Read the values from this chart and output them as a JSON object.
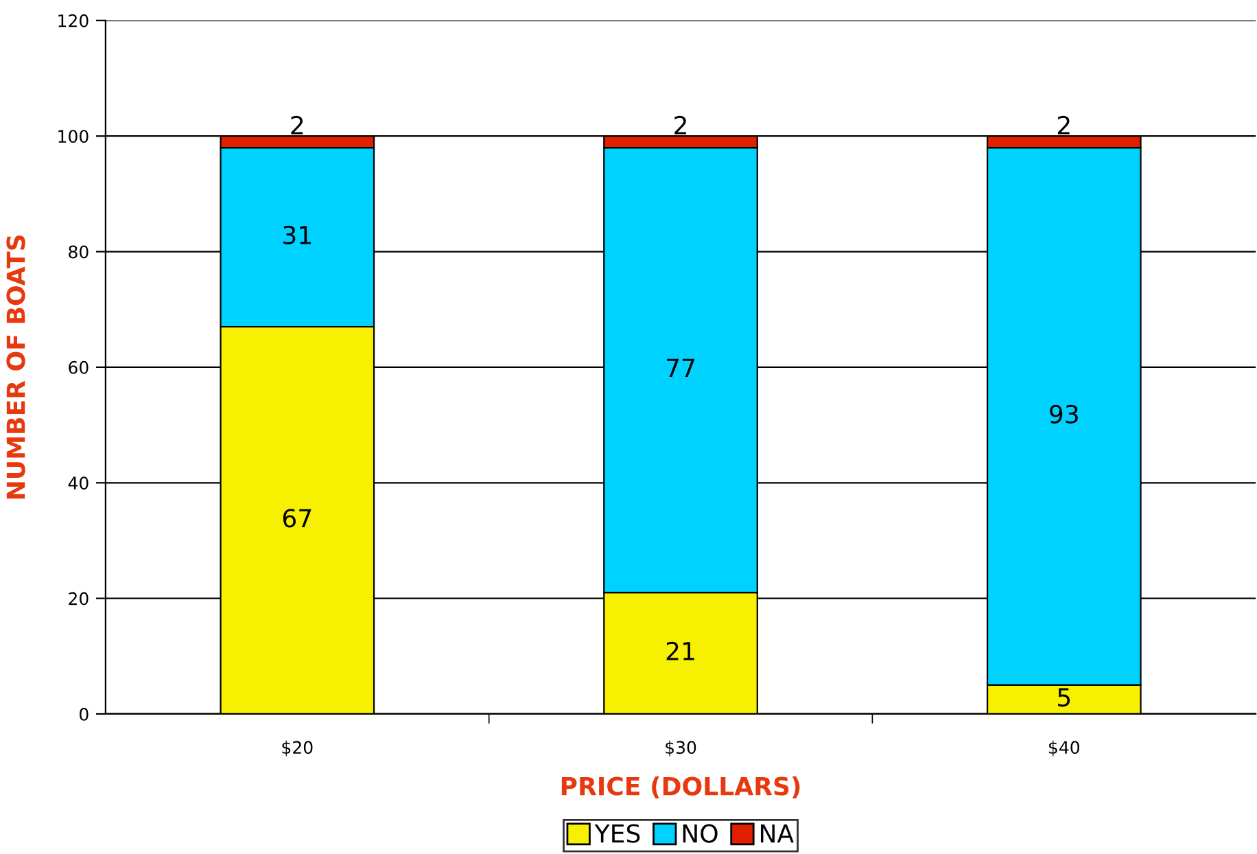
{
  "chart_data": {
    "type": "bar",
    "stacked": true,
    "xlabel": "PRICE (DOLLARS)",
    "ylabel": "NUMBER OF BOATS",
    "categories": [
      "$20",
      "$30",
      "$40"
    ],
    "series": [
      {
        "name": "YES",
        "color": "#f7f000",
        "values": [
          67,
          21,
          5
        ]
      },
      {
        "name": "NO",
        "color": "#00d2ff",
        "values": [
          31,
          77,
          93
        ]
      },
      {
        "name": "NA",
        "color": "#e02000",
        "values": [
          2,
          2,
          2
        ]
      }
    ],
    "ylim": [
      0,
      120
    ],
    "yticks": [
      0,
      20,
      40,
      60,
      80,
      100,
      120
    ],
    "grid": "y",
    "legend": "bottom",
    "data_labels": true
  }
}
